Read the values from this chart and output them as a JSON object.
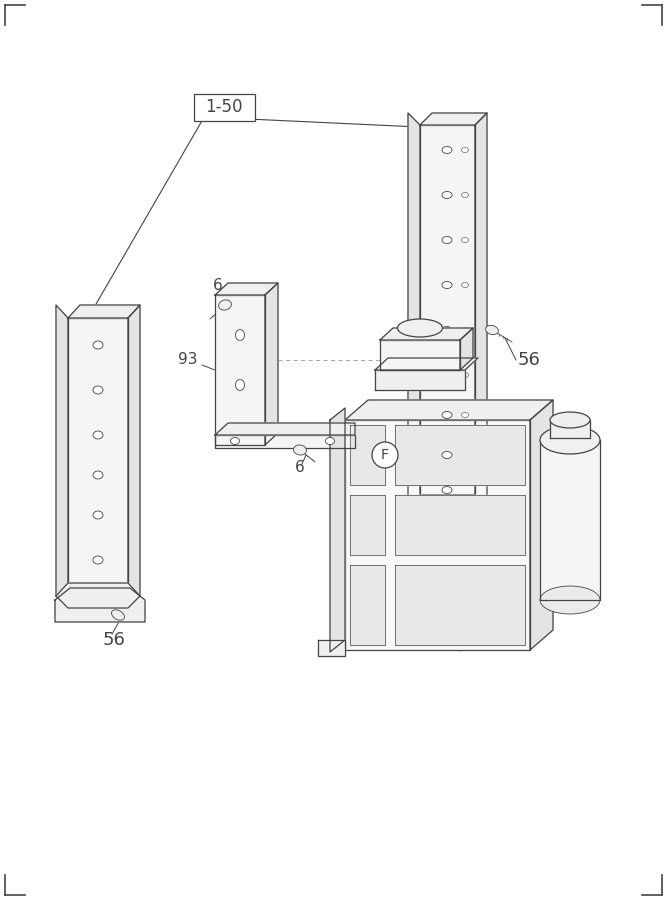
{
  "bg_color": "#ffffff",
  "line_color": "#444444",
  "lw_main": 0.9,
  "lw_thin": 0.6,
  "fill_light": "#f8f8f8",
  "fill_mid": "#efefef",
  "fill_dark": "#e4e4e4",
  "label_1_50": "1-50",
  "label_6a": "6",
  "label_6b": "6",
  "label_56a": "56",
  "label_56b": "56",
  "label_93": "93",
  "label_F": "F",
  "fig_width": 6.67,
  "fig_height": 9.0
}
